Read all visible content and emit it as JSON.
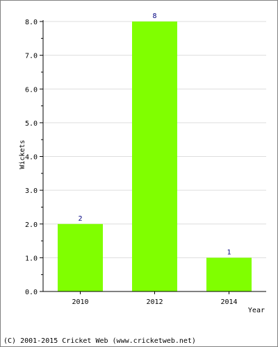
{
  "chart_data": {
    "type": "bar",
    "categories": [
      "2010",
      "2012",
      "2014"
    ],
    "values": [
      2,
      8,
      1
    ],
    "value_labels": [
      "2",
      "8",
      "1"
    ],
    "xlabel": "Year",
    "ylabel": "Wickets",
    "ylim": [
      0,
      8
    ],
    "yticks": [
      0,
      1,
      2,
      3,
      4,
      5,
      6,
      7,
      8
    ],
    "ytick_labels": [
      "0.0",
      "1.0",
      "2.0",
      "3.0",
      "4.0",
      "5.0",
      "6.0",
      "7.0",
      "8.0"
    ],
    "grid": true,
    "colors": {
      "bar": "#80ff00",
      "value_label": "#000080",
      "grid": "#dddddd",
      "axis": "#000000"
    }
  },
  "footer": {
    "copyright": "(C) 2001-2015 Cricket Web (www.cricketweb.net)"
  }
}
